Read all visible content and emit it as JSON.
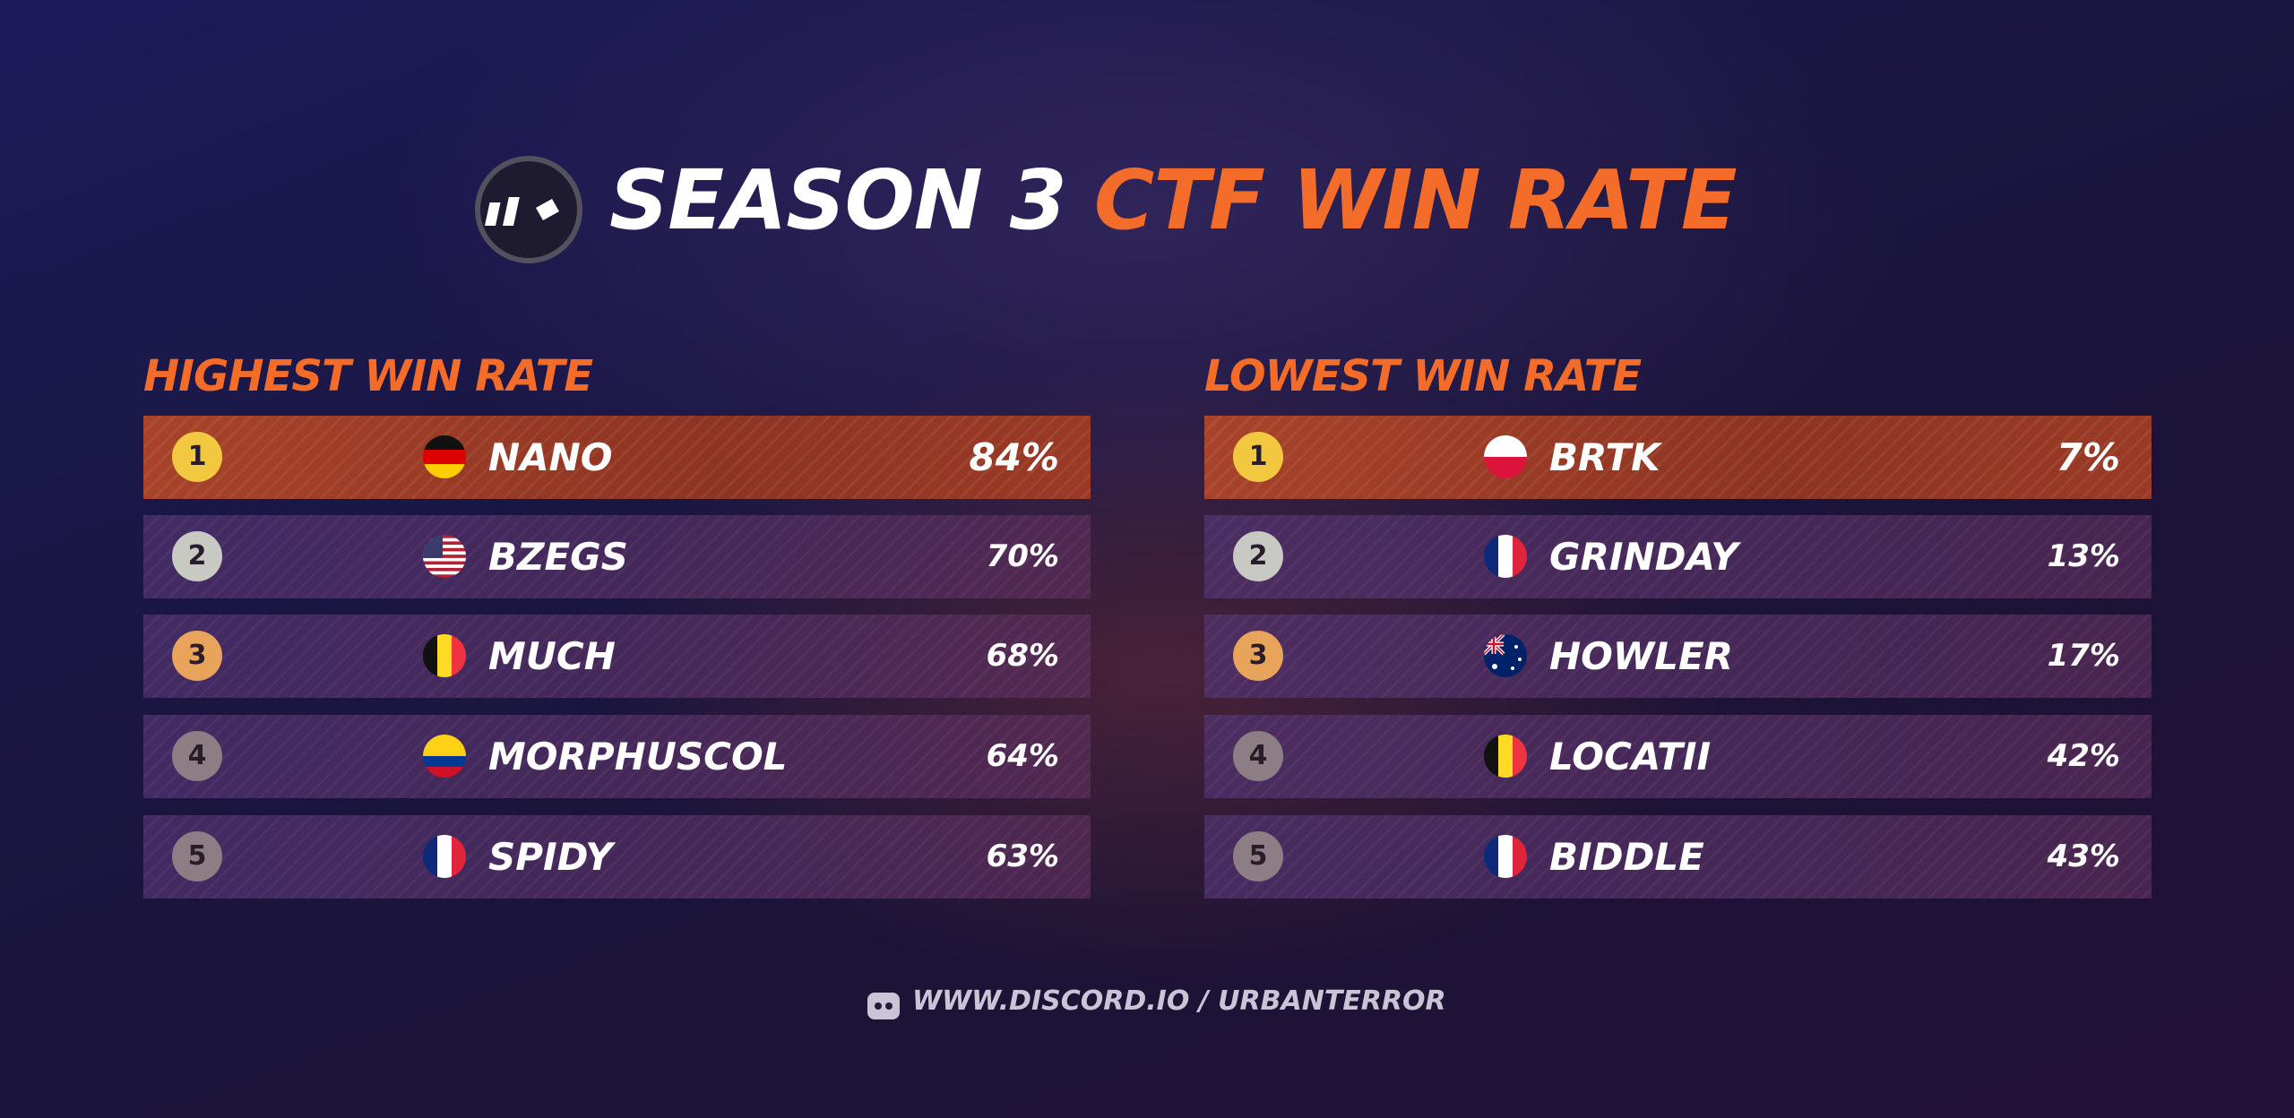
{
  "header": {
    "title": [
      "SEASON 3",
      "CTF WIN RATE"
    ]
  },
  "tables": [
    {
      "title": "HIGHEST WIN RATE",
      "rows": [
        [
          1,
          "NANO",
          "84%"
        ],
        [
          2,
          "BZEGS",
          "70%"
        ],
        [
          3,
          "MUCH",
          "68%"
        ],
        [
          4,
          "MORPHUSCOL",
          "64%"
        ],
        [
          5,
          "SPIDY",
          "63%"
        ]
      ]
    },
    {
      "title": "LOWEST WIN RATE",
      "rows": [
        [
          1,
          "BRTK",
          "7%"
        ],
        [
          2,
          "GRINDAY",
          "13%"
        ],
        [
          3,
          "HOWLER",
          "17%"
        ],
        [
          4,
          "LOCATII",
          "42%"
        ],
        [
          5,
          "BIDDLE",
          "43%"
        ]
      ]
    }
  ],
  "footer": {
    "link": "WWW.DISCORD.IO / URBANTERROR"
  }
}
